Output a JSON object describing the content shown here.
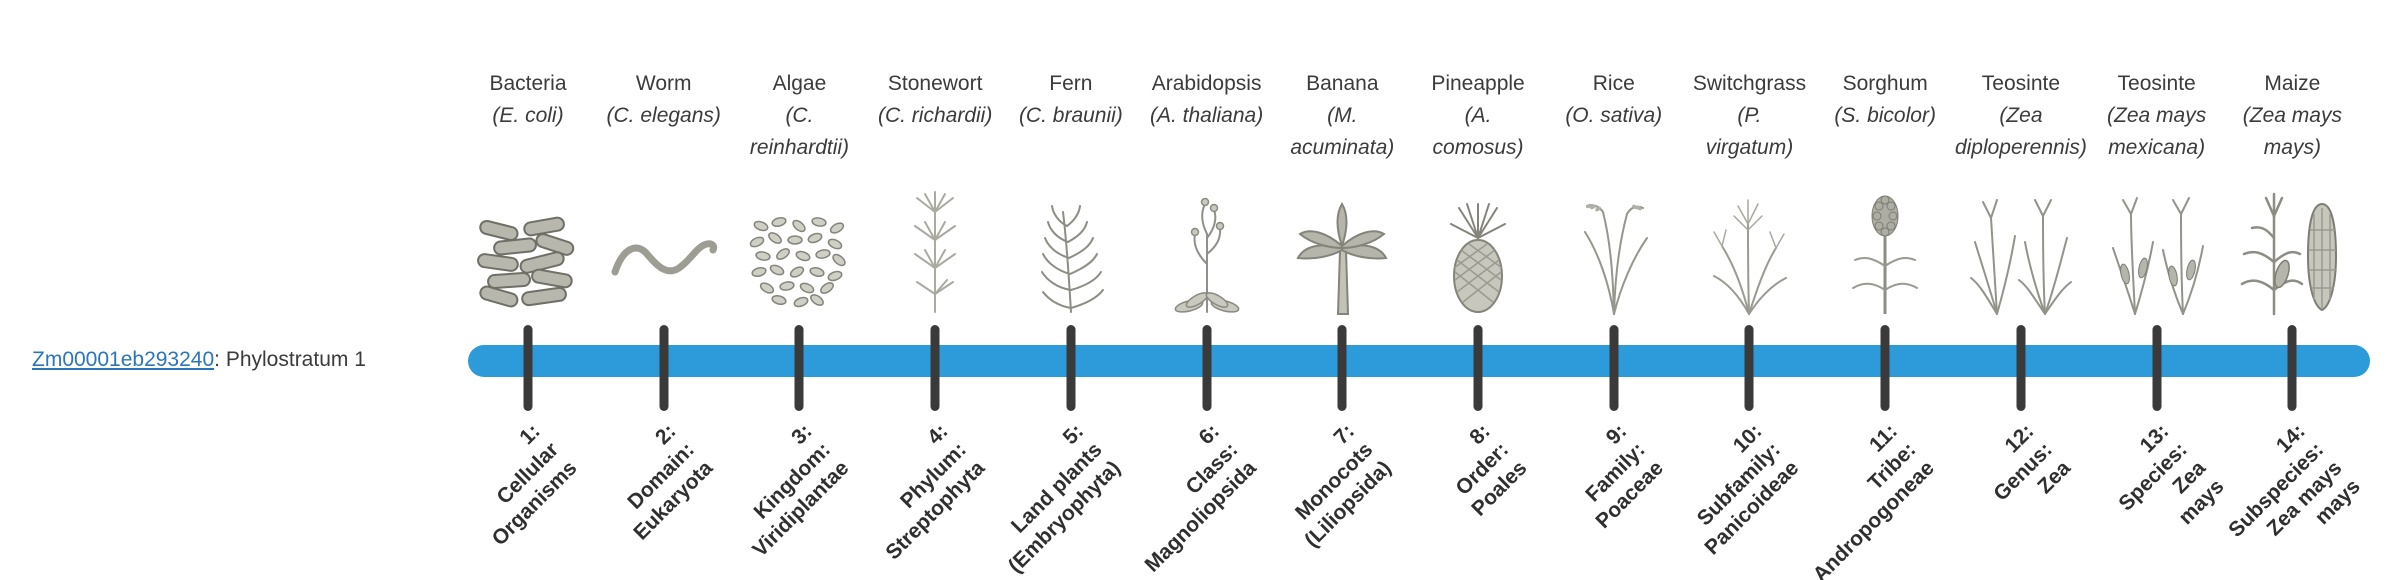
{
  "gene": {
    "id": "Zm00001eb293240",
    "suffix": ": Phylostratum 1",
    "link_color": "#2a76bb"
  },
  "timeline": {
    "bar_color": "#2d9bd9",
    "tick_color": "#3a3a3a"
  },
  "columns": [
    {
      "common_name": "Bacteria",
      "sci_lines": [
        "(E. coli)"
      ],
      "icon": "bacteria-icon",
      "strata_lines": [
        "1:",
        "Cellular",
        "Organisms"
      ]
    },
    {
      "common_name": "Worm",
      "sci_lines": [
        "(C. elegans)"
      ],
      "icon": "worm-icon",
      "strata_lines": [
        "2:",
        "Domain:",
        "Eukaryota"
      ]
    },
    {
      "common_name": "Algae",
      "sci_lines": [
        "(C.",
        "reinhardtii)"
      ],
      "icon": "algae-icon",
      "strata_lines": [
        "3:",
        "Kingdom:",
        "Viridiplantae"
      ]
    },
    {
      "common_name": "Stonewort",
      "sci_lines": [
        "(C. richardii)"
      ],
      "icon": "stonewort-icon",
      "strata_lines": [
        "4:",
        "Phylum:",
        "Streptophyta"
      ]
    },
    {
      "common_name": "Fern",
      "sci_lines": [
        "(C. braunii)"
      ],
      "icon": "fern-icon",
      "strata_lines": [
        "5:",
        "Land plants",
        "(Embryophyta)"
      ]
    },
    {
      "common_name": "Arabidopsis",
      "sci_lines": [
        "(A. thaliana)"
      ],
      "icon": "arabidopsis-icon",
      "strata_lines": [
        "6:",
        "Class:",
        "Magnoliopsida"
      ]
    },
    {
      "common_name": "Banana",
      "sci_lines": [
        "(M.",
        "acuminata)"
      ],
      "icon": "banana-icon",
      "strata_lines": [
        "7:",
        "Monocots",
        "(Liliopsida)"
      ]
    },
    {
      "common_name": "Pineapple",
      "sci_lines": [
        "(A.",
        "comosus)"
      ],
      "icon": "pineapple-icon",
      "strata_lines": [
        "8:",
        "Order:",
        "Poales"
      ]
    },
    {
      "common_name": "Rice",
      "sci_lines": [
        "(O. sativa)"
      ],
      "icon": "rice-icon",
      "strata_lines": [
        "9:",
        "Family:",
        "Poaceae"
      ]
    },
    {
      "common_name": "Switchgrass",
      "sci_lines": [
        "(P.",
        "virgatum)"
      ],
      "icon": "switchgrass-icon",
      "strata_lines": [
        "10:",
        "Subfamily:",
        "Panicoideae"
      ]
    },
    {
      "common_name": "Sorghum",
      "sci_lines": [
        "(S. bicolor)"
      ],
      "icon": "sorghum-icon",
      "strata_lines": [
        "11:",
        "Tribe:",
        "Andropogoneae"
      ]
    },
    {
      "common_name": "Teosinte",
      "sci_lines": [
        "(Zea",
        "diploperennis)"
      ],
      "icon": "teosinte-diploperennis-icon",
      "strata_lines": [
        "12:",
        "Genus:",
        "Zea"
      ]
    },
    {
      "common_name": "Teosinte",
      "sci_lines": [
        "(Zea mays",
        "mexicana)"
      ],
      "icon": "teosinte-mexicana-icon",
      "strata_lines": [
        "13:",
        "Species:",
        "Zea",
        "mays"
      ]
    },
    {
      "common_name": "Maize",
      "sci_lines": [
        "(Zea mays",
        "mays)"
      ],
      "icon": "maize-icon",
      "strata_lines": [
        "14:",
        "Subspecies:",
        "Zea mays",
        "mays"
      ]
    }
  ]
}
